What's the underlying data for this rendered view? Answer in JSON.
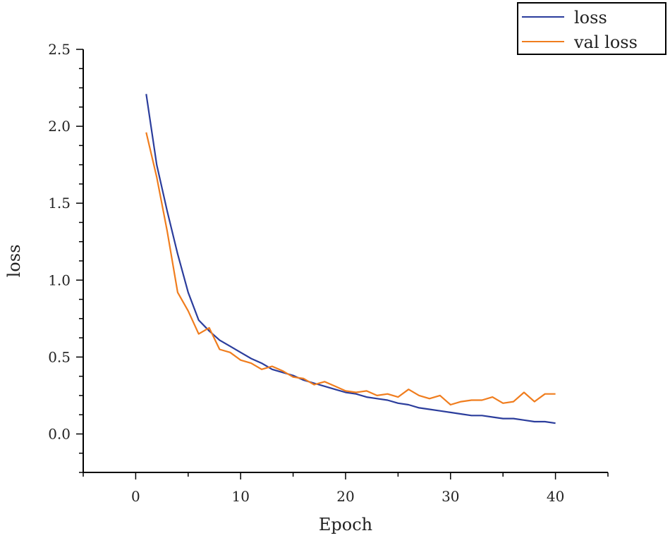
{
  "chart_data": {
    "type": "line",
    "xlabel": "Epoch",
    "ylabel": "loss",
    "xlim": [
      -5,
      45
    ],
    "ylim": [
      -0.25,
      2.5
    ],
    "x_ticks": [
      0,
      10,
      20,
      30,
      40
    ],
    "y_ticks": [
      0.0,
      0.5,
      1.0,
      1.5,
      2.0,
      2.5
    ],
    "x_tick_labels": [
      "0",
      "10",
      "20",
      "30",
      "40"
    ],
    "y_tick_labels": [
      "0.0",
      "0.5",
      "1.0",
      "1.5",
      "2.0",
      "2.5"
    ],
    "legend_position": "top-right",
    "grid": false,
    "x": [
      1,
      2,
      3,
      4,
      5,
      6,
      7,
      8,
      9,
      10,
      11,
      12,
      13,
      14,
      15,
      16,
      17,
      18,
      19,
      20,
      21,
      22,
      23,
      24,
      25,
      26,
      27,
      28,
      29,
      30,
      31,
      32,
      33,
      34,
      35,
      36,
      37,
      38,
      39,
      40
    ],
    "series": [
      {
        "name": "loss",
        "color": "#2b3d9c",
        "values": [
          2.21,
          1.75,
          1.45,
          1.17,
          0.92,
          0.74,
          0.67,
          0.61,
          0.57,
          0.53,
          0.49,
          0.46,
          0.42,
          0.4,
          0.38,
          0.35,
          0.33,
          0.31,
          0.29,
          0.27,
          0.26,
          0.24,
          0.23,
          0.22,
          0.2,
          0.19,
          0.17,
          0.16,
          0.15,
          0.14,
          0.13,
          0.12,
          0.12,
          0.11,
          0.1,
          0.1,
          0.09,
          0.08,
          0.08,
          0.07
        ]
      },
      {
        "name": "val loss",
        "color": "#f07d1e",
        "values": [
          1.96,
          1.67,
          1.32,
          0.92,
          0.8,
          0.65,
          0.69,
          0.55,
          0.53,
          0.48,
          0.46,
          0.42,
          0.44,
          0.41,
          0.37,
          0.36,
          0.32,
          0.34,
          0.31,
          0.28,
          0.27,
          0.28,
          0.25,
          0.26,
          0.24,
          0.29,
          0.25,
          0.23,
          0.25,
          0.19,
          0.21,
          0.22,
          0.22,
          0.24,
          0.2,
          0.21,
          0.27,
          0.21,
          0.26,
          0.26
        ]
      }
    ]
  }
}
